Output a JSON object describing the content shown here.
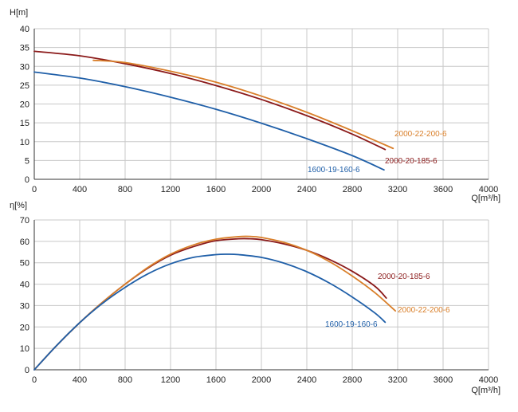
{
  "chart_data": [
    {
      "type": "line",
      "ylabel": "H[m]",
      "xlabel": "Q[m³/h]",
      "xlim": [
        0,
        4000
      ],
      "ylim": [
        0,
        40
      ],
      "xticks": [
        0,
        400,
        800,
        1200,
        1600,
        2000,
        2400,
        2800,
        3200,
        3600,
        4000
      ],
      "yticks": [
        0,
        5,
        10,
        15,
        20,
        25,
        30,
        35,
        40
      ],
      "grid": true,
      "series": [
        {
          "name": "1600-19-160-6",
          "color": "#1f5fa8",
          "x": [
            0,
            400,
            800,
            1200,
            1600,
            2000,
            2400,
            2800,
            3080
          ],
          "y": [
            28.5,
            26.9,
            24.6,
            21.8,
            18.6,
            14.9,
            10.8,
            6.3,
            2.5
          ]
        },
        {
          "name": "2000-20-185-6",
          "color": "#8b1a1a",
          "x": [
            0,
            400,
            800,
            1200,
            1600,
            2000,
            2400,
            2800,
            3090
          ],
          "y": [
            34.0,
            32.8,
            30.7,
            28.1,
            24.9,
            21.2,
            16.9,
            12.0,
            7.9
          ]
        },
        {
          "name": "2000-22-200-6",
          "color": "#d97f2a",
          "x": [
            520,
            800,
            1200,
            1600,
            2000,
            2400,
            2800,
            3160
          ],
          "y": [
            31.6,
            31.0,
            28.7,
            25.8,
            22.1,
            17.8,
            12.9,
            8.2
          ]
        }
      ]
    },
    {
      "type": "line",
      "ylabel": "η[%]",
      "xlabel": "Q[m³/h]",
      "xlim": [
        0,
        4000
      ],
      "ylim": [
        0,
        70
      ],
      "xticks": [
        0,
        400,
        800,
        1200,
        1600,
        2000,
        2400,
        2800,
        3200,
        3600,
        4000
      ],
      "yticks": [
        0,
        10,
        20,
        30,
        40,
        50,
        60,
        70
      ],
      "grid": true,
      "series": [
        {
          "name": "2000-20-185-6",
          "color": "#8b1a1a",
          "x": [
            0,
            200,
            400,
            600,
            800,
            1000,
            1200,
            1400,
            1600,
            1800,
            1900,
            2000,
            2200,
            2400,
            2600,
            2800,
            3000,
            3100
          ],
          "y": [
            0,
            11.5,
            22,
            31.5,
            40,
            47.5,
            53.5,
            57.5,
            60.3,
            61.2,
            61.2,
            60.8,
            58.8,
            55.8,
            51.5,
            46,
            39,
            33.5
          ]
        },
        {
          "name": "2000-22-200-6",
          "color": "#d97f2a",
          "x": [
            0,
            200,
            400,
            600,
            800,
            1000,
            1200,
            1400,
            1600,
            1800,
            1900,
            2000,
            2200,
            2400,
            2600,
            2800,
            3000,
            3180
          ],
          "y": [
            0,
            11.5,
            22,
            31.5,
            40,
            47.8,
            54,
            58.3,
            61,
            62.2,
            62.3,
            61.8,
            59.5,
            55.8,
            50.5,
            43.8,
            36,
            27.5
          ]
        },
        {
          "name": "1600-19-160-6",
          "color": "#1f5fa8",
          "x": [
            0,
            200,
            400,
            600,
            800,
            1000,
            1200,
            1400,
            1600,
            1700,
            1800,
            2000,
            2200,
            2400,
            2600,
            2800,
            3000,
            3090
          ],
          "y": [
            0,
            11.5,
            22,
            31,
            38.5,
            44.8,
            49.5,
            52.5,
            53.8,
            54,
            53.8,
            52.5,
            49.8,
            45.8,
            40.5,
            34,
            26.5,
            22.2
          ]
        }
      ]
    }
  ]
}
